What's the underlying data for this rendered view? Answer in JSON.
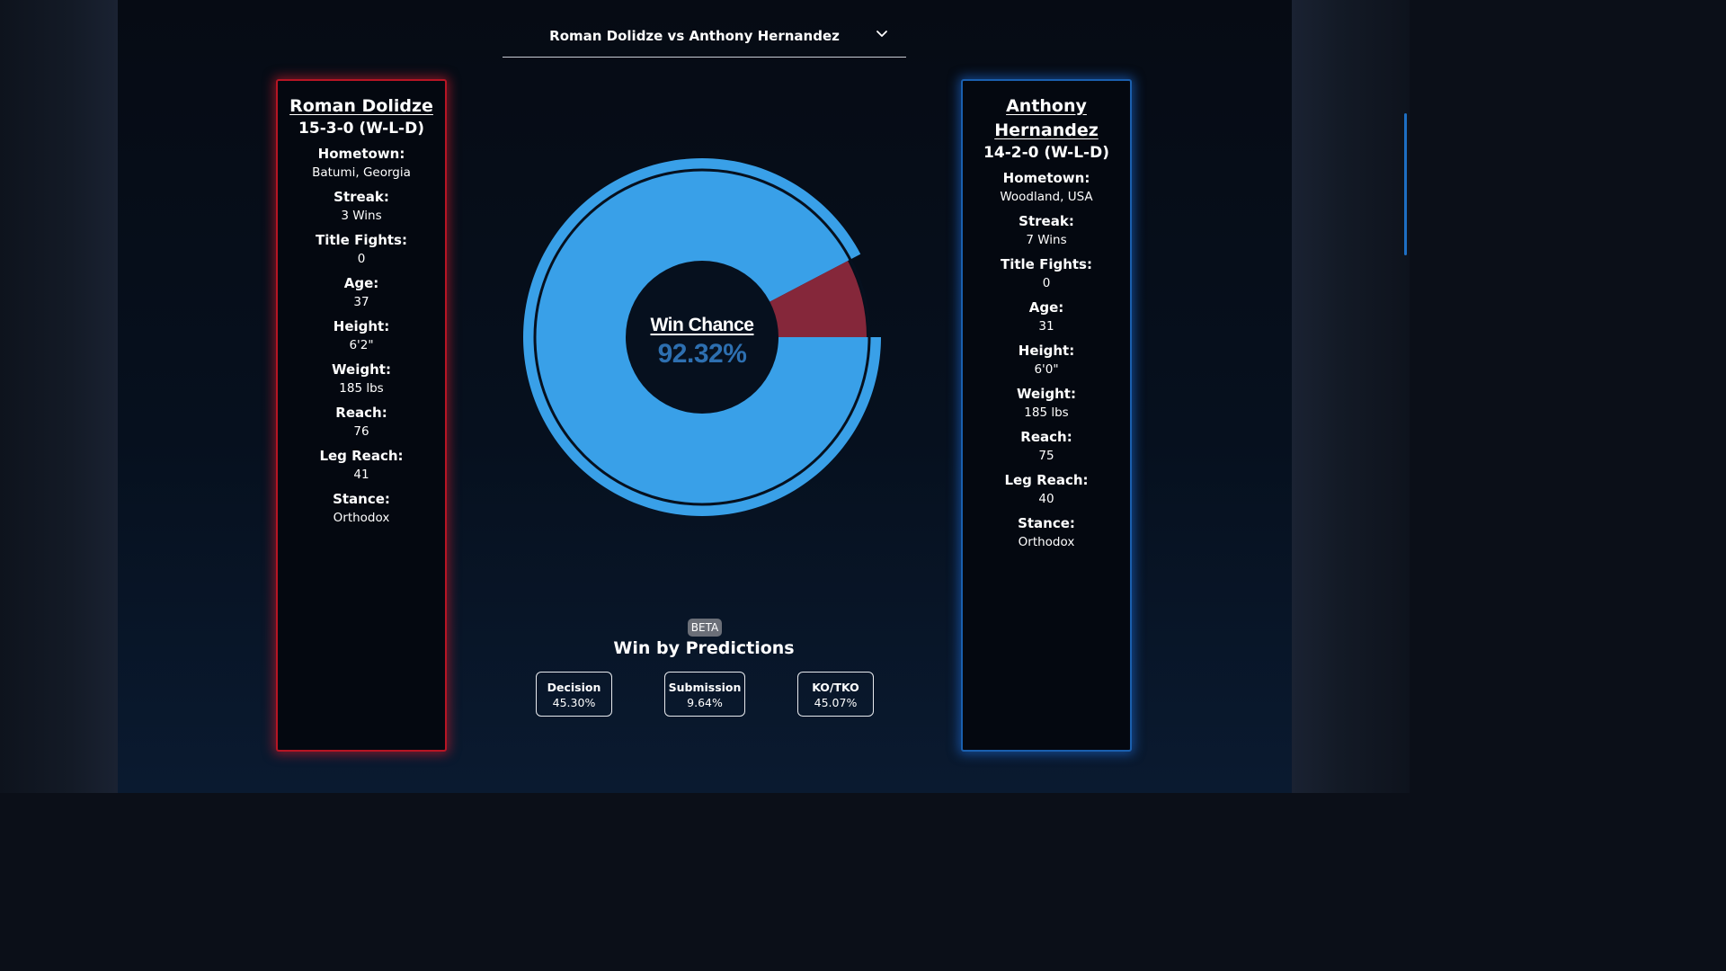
{
  "fight_selector": {
    "label": "Roman Dolidze vs Anthony Hernandez",
    "icon": "chevron-down-icon"
  },
  "fighters": {
    "red": {
      "name": "Roman Dolidze",
      "record": "15-3-0 (W-L-D)",
      "corner_color": "#b71524",
      "stats": [
        {
          "label": "Hometown:",
          "value": "Batumi, Georgia"
        },
        {
          "label": "Streak:",
          "value": "3 Wins"
        },
        {
          "label": "Title Fights:",
          "value": "0"
        },
        {
          "label": "Age:",
          "value": "37"
        },
        {
          "label": "Height:",
          "value": "6'2\""
        },
        {
          "label": "Weight:",
          "value": "185 lbs"
        },
        {
          "label": "Reach:",
          "value": "76"
        },
        {
          "label": "Leg Reach:",
          "value": "41"
        },
        {
          "label": "Stance:",
          "value": "Orthodox"
        }
      ]
    },
    "blue": {
      "name": "Anthony Hernandez",
      "record": "14-2-0 (W-L-D)",
      "corner_color": "#1a5fae",
      "stats": [
        {
          "label": "Hometown:",
          "value": "Woodland, USA"
        },
        {
          "label": "Streak:",
          "value": "7 Wins"
        },
        {
          "label": "Title Fights:",
          "value": "0"
        },
        {
          "label": "Age:",
          "value": "31"
        },
        {
          "label": "Height:",
          "value": "6'0\""
        },
        {
          "label": "Weight:",
          "value": "185 lbs"
        },
        {
          "label": "Reach:",
          "value": "75"
        },
        {
          "label": "Leg Reach:",
          "value": "40"
        },
        {
          "label": "Stance:",
          "value": "Orthodox"
        }
      ]
    }
  },
  "win_chance": {
    "title": "Win Chance",
    "value_text": "92.32%",
    "value_color": "#2d6fb0",
    "chart_data": {
      "type": "pie",
      "title": "Win Chance",
      "slices": [
        {
          "value": 92.32,
          "color": "#39a0e8"
        },
        {
          "value": 7.68,
          "color": "#85273a"
        }
      ],
      "inner_color": "#06101e",
      "ring_color": "#06101e"
    }
  },
  "predictions": {
    "badge": "BETA",
    "title": "Win by Predictions",
    "items": [
      {
        "label": "Decision",
        "value": "45.30%"
      },
      {
        "label": "Submission",
        "value": "9.64%"
      },
      {
        "label": "KO/TKO",
        "value": "45.07%"
      }
    ]
  }
}
